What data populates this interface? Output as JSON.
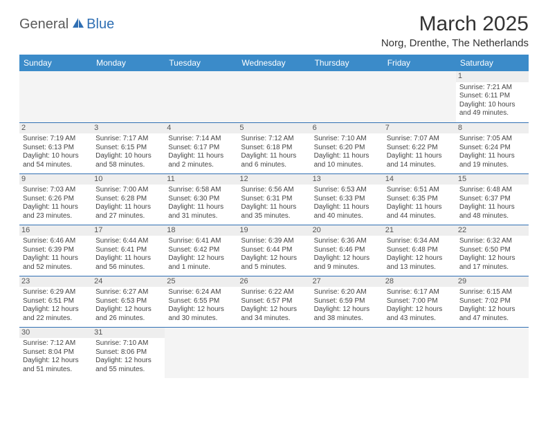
{
  "logo": {
    "part1": "General",
    "part2": "Blue"
  },
  "title": "March 2025",
  "location": "Norg, Drenthe, The Netherlands",
  "colors": {
    "header_bg": "#3b8bc9",
    "header_text": "#ffffff",
    "row_border": "#2f6fb3",
    "daynum_bg": "#eeeeee",
    "empty_bg": "#f4f4f4",
    "logo_accent": "#2f6fb3"
  },
  "weekdays": [
    "Sunday",
    "Monday",
    "Tuesday",
    "Wednesday",
    "Thursday",
    "Friday",
    "Saturday"
  ],
  "weeks": [
    [
      null,
      null,
      null,
      null,
      null,
      null,
      {
        "n": "1",
        "sr": "Sunrise: 7:21 AM",
        "ss": "Sunset: 6:11 PM",
        "dl1": "Daylight: 10 hours",
        "dl2": "and 49 minutes."
      }
    ],
    [
      {
        "n": "2",
        "sr": "Sunrise: 7:19 AM",
        "ss": "Sunset: 6:13 PM",
        "dl1": "Daylight: 10 hours",
        "dl2": "and 54 minutes."
      },
      {
        "n": "3",
        "sr": "Sunrise: 7:17 AM",
        "ss": "Sunset: 6:15 PM",
        "dl1": "Daylight: 10 hours",
        "dl2": "and 58 minutes."
      },
      {
        "n": "4",
        "sr": "Sunrise: 7:14 AM",
        "ss": "Sunset: 6:17 PM",
        "dl1": "Daylight: 11 hours",
        "dl2": "and 2 minutes."
      },
      {
        "n": "5",
        "sr": "Sunrise: 7:12 AM",
        "ss": "Sunset: 6:18 PM",
        "dl1": "Daylight: 11 hours",
        "dl2": "and 6 minutes."
      },
      {
        "n": "6",
        "sr": "Sunrise: 7:10 AM",
        "ss": "Sunset: 6:20 PM",
        "dl1": "Daylight: 11 hours",
        "dl2": "and 10 minutes."
      },
      {
        "n": "7",
        "sr": "Sunrise: 7:07 AM",
        "ss": "Sunset: 6:22 PM",
        "dl1": "Daylight: 11 hours",
        "dl2": "and 14 minutes."
      },
      {
        "n": "8",
        "sr": "Sunrise: 7:05 AM",
        "ss": "Sunset: 6:24 PM",
        "dl1": "Daylight: 11 hours",
        "dl2": "and 19 minutes."
      }
    ],
    [
      {
        "n": "9",
        "sr": "Sunrise: 7:03 AM",
        "ss": "Sunset: 6:26 PM",
        "dl1": "Daylight: 11 hours",
        "dl2": "and 23 minutes."
      },
      {
        "n": "10",
        "sr": "Sunrise: 7:00 AM",
        "ss": "Sunset: 6:28 PM",
        "dl1": "Daylight: 11 hours",
        "dl2": "and 27 minutes."
      },
      {
        "n": "11",
        "sr": "Sunrise: 6:58 AM",
        "ss": "Sunset: 6:30 PM",
        "dl1": "Daylight: 11 hours",
        "dl2": "and 31 minutes."
      },
      {
        "n": "12",
        "sr": "Sunrise: 6:56 AM",
        "ss": "Sunset: 6:31 PM",
        "dl1": "Daylight: 11 hours",
        "dl2": "and 35 minutes."
      },
      {
        "n": "13",
        "sr": "Sunrise: 6:53 AM",
        "ss": "Sunset: 6:33 PM",
        "dl1": "Daylight: 11 hours",
        "dl2": "and 40 minutes."
      },
      {
        "n": "14",
        "sr": "Sunrise: 6:51 AM",
        "ss": "Sunset: 6:35 PM",
        "dl1": "Daylight: 11 hours",
        "dl2": "and 44 minutes."
      },
      {
        "n": "15",
        "sr": "Sunrise: 6:48 AM",
        "ss": "Sunset: 6:37 PM",
        "dl1": "Daylight: 11 hours",
        "dl2": "and 48 minutes."
      }
    ],
    [
      {
        "n": "16",
        "sr": "Sunrise: 6:46 AM",
        "ss": "Sunset: 6:39 PM",
        "dl1": "Daylight: 11 hours",
        "dl2": "and 52 minutes."
      },
      {
        "n": "17",
        "sr": "Sunrise: 6:44 AM",
        "ss": "Sunset: 6:41 PM",
        "dl1": "Daylight: 11 hours",
        "dl2": "and 56 minutes."
      },
      {
        "n": "18",
        "sr": "Sunrise: 6:41 AM",
        "ss": "Sunset: 6:42 PM",
        "dl1": "Daylight: 12 hours",
        "dl2": "and 1 minute."
      },
      {
        "n": "19",
        "sr": "Sunrise: 6:39 AM",
        "ss": "Sunset: 6:44 PM",
        "dl1": "Daylight: 12 hours",
        "dl2": "and 5 minutes."
      },
      {
        "n": "20",
        "sr": "Sunrise: 6:36 AM",
        "ss": "Sunset: 6:46 PM",
        "dl1": "Daylight: 12 hours",
        "dl2": "and 9 minutes."
      },
      {
        "n": "21",
        "sr": "Sunrise: 6:34 AM",
        "ss": "Sunset: 6:48 PM",
        "dl1": "Daylight: 12 hours",
        "dl2": "and 13 minutes."
      },
      {
        "n": "22",
        "sr": "Sunrise: 6:32 AM",
        "ss": "Sunset: 6:50 PM",
        "dl1": "Daylight: 12 hours",
        "dl2": "and 17 minutes."
      }
    ],
    [
      {
        "n": "23",
        "sr": "Sunrise: 6:29 AM",
        "ss": "Sunset: 6:51 PM",
        "dl1": "Daylight: 12 hours",
        "dl2": "and 22 minutes."
      },
      {
        "n": "24",
        "sr": "Sunrise: 6:27 AM",
        "ss": "Sunset: 6:53 PM",
        "dl1": "Daylight: 12 hours",
        "dl2": "and 26 minutes."
      },
      {
        "n": "25",
        "sr": "Sunrise: 6:24 AM",
        "ss": "Sunset: 6:55 PM",
        "dl1": "Daylight: 12 hours",
        "dl2": "and 30 minutes."
      },
      {
        "n": "26",
        "sr": "Sunrise: 6:22 AM",
        "ss": "Sunset: 6:57 PM",
        "dl1": "Daylight: 12 hours",
        "dl2": "and 34 minutes."
      },
      {
        "n": "27",
        "sr": "Sunrise: 6:20 AM",
        "ss": "Sunset: 6:59 PM",
        "dl1": "Daylight: 12 hours",
        "dl2": "and 38 minutes."
      },
      {
        "n": "28",
        "sr": "Sunrise: 6:17 AM",
        "ss": "Sunset: 7:00 PM",
        "dl1": "Daylight: 12 hours",
        "dl2": "and 43 minutes."
      },
      {
        "n": "29",
        "sr": "Sunrise: 6:15 AM",
        "ss": "Sunset: 7:02 PM",
        "dl1": "Daylight: 12 hours",
        "dl2": "and 47 minutes."
      }
    ],
    [
      {
        "n": "30",
        "sr": "Sunrise: 7:12 AM",
        "ss": "Sunset: 8:04 PM",
        "dl1": "Daylight: 12 hours",
        "dl2": "and 51 minutes."
      },
      {
        "n": "31",
        "sr": "Sunrise: 7:10 AM",
        "ss": "Sunset: 8:06 PM",
        "dl1": "Daylight: 12 hours",
        "dl2": "and 55 minutes."
      },
      null,
      null,
      null,
      null,
      null
    ]
  ]
}
